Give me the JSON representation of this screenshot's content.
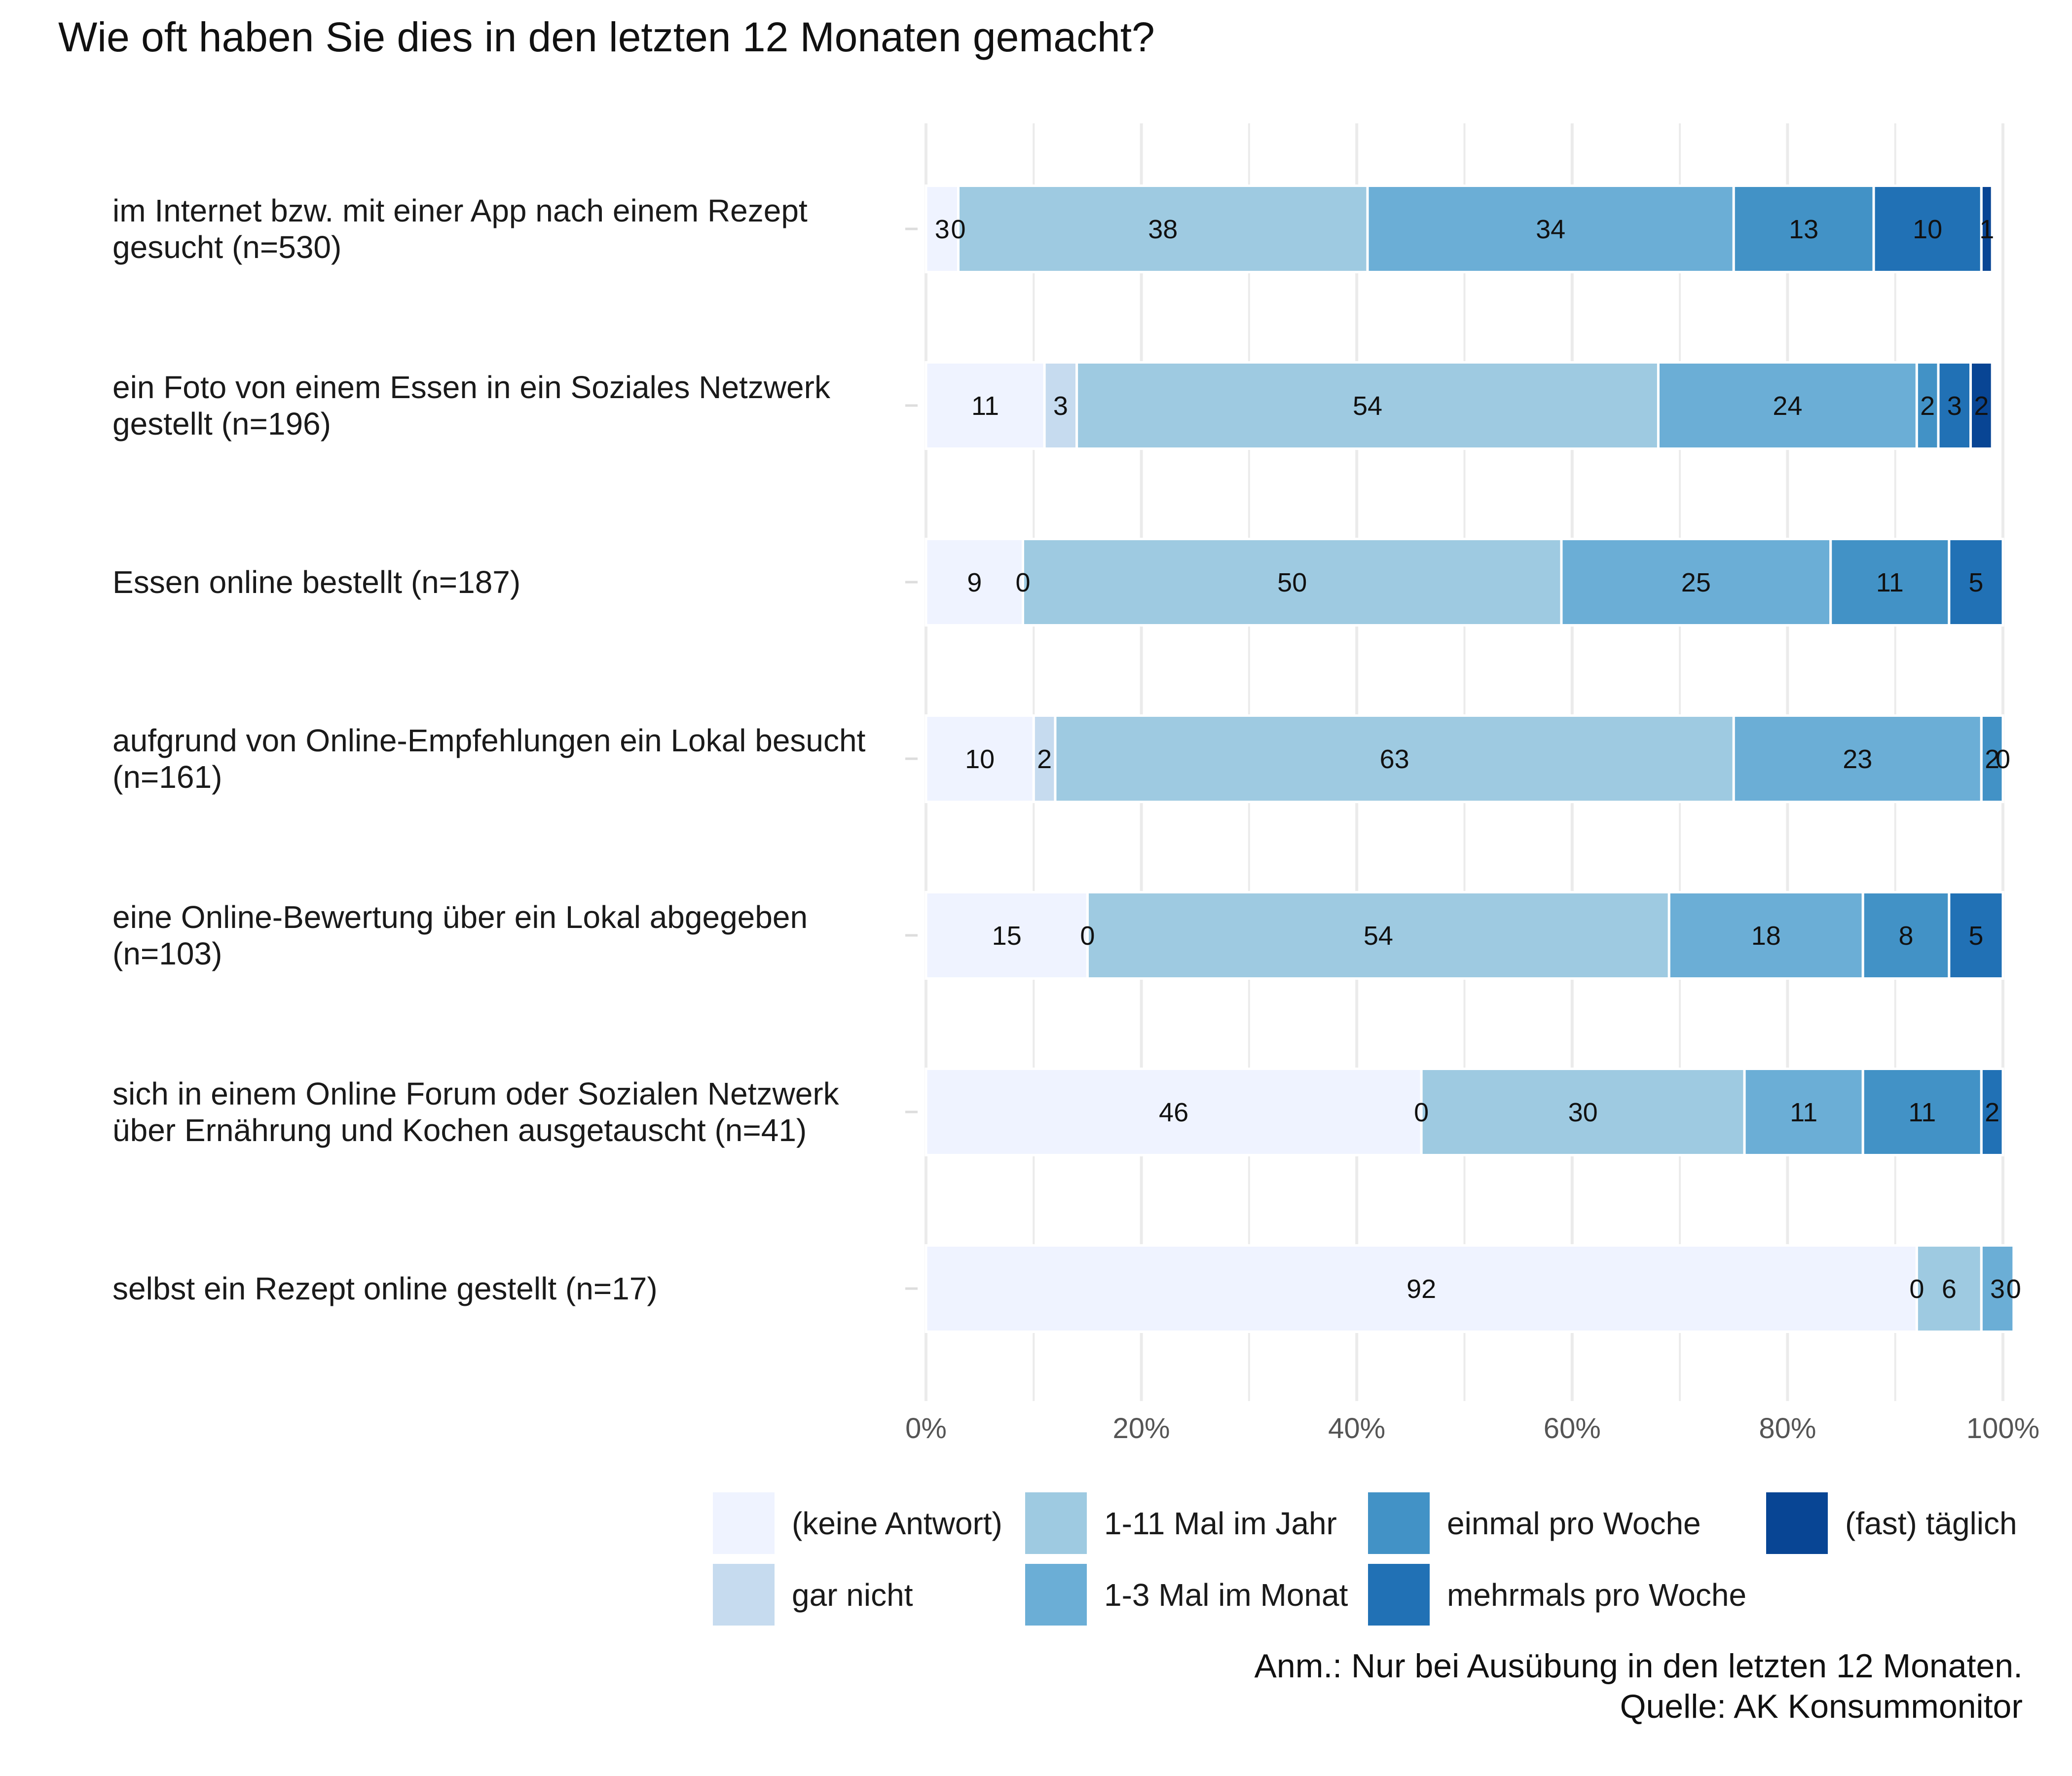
{
  "chart_data": {
    "type": "bar",
    "orientation": "horizontal",
    "stacked": true,
    "title": "Wie oft haben Sie dies in den letzten 12 Monaten gemacht?",
    "categories": [
      [
        "im Internet bzw. mit einer App nach einem Rezept",
        "gesucht (n=530)"
      ],
      [
        "ein Foto von einem Essen in ein Soziales Netzwerk",
        "gestellt (n=196)"
      ],
      [
        "Essen online bestellt (n=187)"
      ],
      [
        "aufgrund von Online-Empfehlungen ein Lokal besucht",
        "(n=161)"
      ],
      [
        "eine Online-Bewertung über ein Lokal abgegeben",
        "(n=103)"
      ],
      [
        "sich in einem Online Forum oder Sozialen Netzwerk",
        "über Ernährung und Kochen ausgetauscht (n=41)"
      ],
      [
        "selbst ein Rezept online gestellt (n=17)"
      ]
    ],
    "series": [
      {
        "name": "(keine Antwort)",
        "color": "#eff3ff",
        "values": [
          3,
          11,
          9,
          10,
          15,
          46,
          92
        ]
      },
      {
        "name": "gar nicht",
        "color": "#c6dbef",
        "values": [
          0,
          3,
          0,
          2,
          0,
          0,
          0
        ]
      },
      {
        "name": "1-11 Mal im Jahr",
        "color": "#9ecae1",
        "values": [
          38,
          54,
          50,
          63,
          54,
          30,
          6
        ]
      },
      {
        "name": "1-3 Mal im Monat",
        "color": "#6baed6",
        "values": [
          34,
          24,
          25,
          23,
          18,
          11,
          3
        ]
      },
      {
        "name": "einmal pro Woche",
        "color": "#4292c6",
        "values": [
          13,
          2,
          11,
          2,
          8,
          11,
          0
        ]
      },
      {
        "name": "mehrmals pro Woche",
        "color": "#2171b5",
        "values": [
          10,
          3,
          5,
          0,
          5,
          2,
          0
        ]
      },
      {
        "name": "(fast) täglich",
        "color": "#084594",
        "values": [
          1,
          2,
          0,
          0,
          0,
          0,
          0
        ]
      }
    ],
    "xlim": [
      0,
      100
    ],
    "xticks": [
      "0%",
      "20%",
      "40%",
      "60%",
      "80%",
      "100%"
    ],
    "grid": true,
    "legend_position": "bottom-right",
    "legend_order": [
      "(keine Antwort)",
      "gar nicht",
      "1-11 Mal im Jahr",
      "1-3 Mal im Monat",
      "einmal pro Woche",
      "mehrmals pro Woche",
      "(fast) täglich"
    ],
    "note": [
      "Anm.: Nur bei Ausübung in den letzten 12 Monaten.",
      "Quelle: AK Konsummonitor"
    ]
  }
}
